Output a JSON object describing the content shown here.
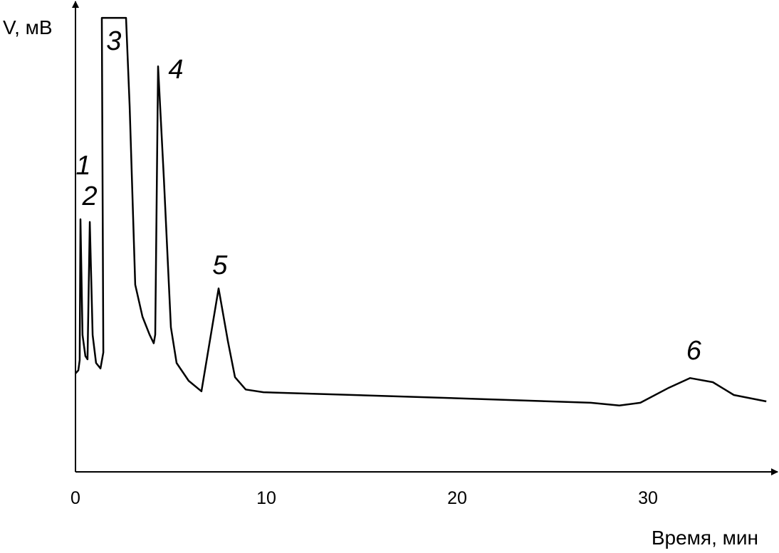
{
  "chart_data": {
    "type": "line",
    "x_label": "Время, мин",
    "y_label": "V, мВ",
    "xlim": [
      0,
      36.5
    ],
    "xticks": [
      0,
      10,
      20,
      30
    ],
    "ylim": [
      0,
      100
    ],
    "color": "#000000",
    "x": [
      0,
      0.15,
      0.22,
      0.26,
      0.37,
      0.52,
      0.63,
      0.75,
      0.9,
      1.08,
      1.31,
      1.46,
      1.38,
      2.65,
      2.84,
      3.13,
      3.51,
      3.88,
      4.1,
      4.18,
      4.33,
      4.63,
      5.0,
      5.3,
      5.93,
      6.6,
      7.5,
      7.99,
      8.36,
      8.92,
      9.85,
      18.43,
      27.0,
      28.5,
      29.6,
      31.1,
      32.2,
      33.4,
      34.5,
      36.2
    ],
    "values": [
      21.5,
      22.2,
      24.4,
      55.2,
      29.9,
      25.3,
      24.6,
      54.6,
      29.9,
      23.8,
      22.6,
      26.1,
      99.2,
      99.2,
      79.8,
      40.9,
      33.9,
      30.0,
      28.1,
      30.0,
      88.6,
      64.2,
      31.6,
      23.8,
      19.9,
      17.6,
      40.1,
      28.5,
      20.7,
      18.0,
      17.4,
      16.3,
      15.1,
      14.5,
      15.1,
      18.4,
      20.5,
      19.6,
      16.8,
      15.4
    ],
    "annotations": [
      {
        "text": "1",
        "x": 0.41,
        "y": 66.6
      },
      {
        "text": "2",
        "x": 0.75,
        "y": 59.9
      },
      {
        "text": "3",
        "x": 2.01,
        "y": 93.8
      },
      {
        "text": "4",
        "x": 5.26,
        "y": 87.6
      },
      {
        "text": "5",
        "x": 7.57,
        "y": 44.8
      },
      {
        "text": "6",
        "x": 32.4,
        "y": 26.1
      }
    ]
  }
}
